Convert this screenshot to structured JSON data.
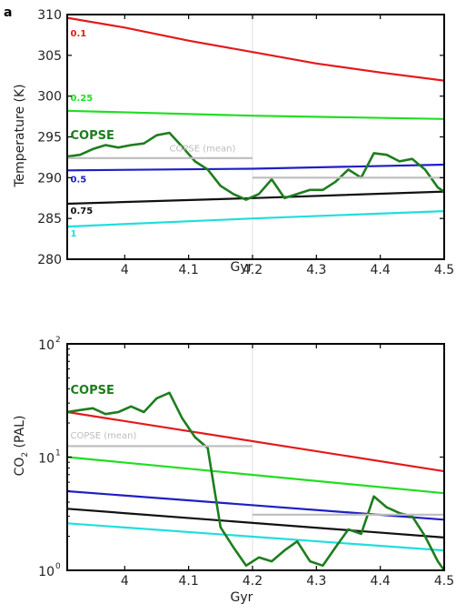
{
  "chart_data": [
    {
      "type": "line",
      "panel_label": "a",
      "xlabel": "Gyr",
      "ylabel": "Temperature (K)",
      "xlim": [
        3.91,
        4.5
      ],
      "ylim": [
        280,
        310
      ],
      "x_ticks": [
        4,
        4.1,
        4.2,
        4.3,
        4.4,
        4.5
      ],
      "x_tick_labels": [
        "4",
        "4.1",
        "4.2",
        "4.3",
        "4.4",
        "4.5"
      ],
      "y_ticks": [
        280,
        285,
        290,
        295,
        300,
        305,
        310
      ],
      "y_tick_labels": [
        "280",
        "285",
        "290",
        "295",
        "300",
        "305",
        "310"
      ],
      "y_scale": "linear",
      "vertical_marker": 4.2,
      "series": [
        {
          "name": "0.1",
          "color": "#e31a1c",
          "x": [
            3.91,
            4.0,
            4.1,
            4.2,
            4.3,
            4.4,
            4.5
          ],
          "values": [
            309.6,
            308.4,
            306.8,
            305.4,
            304.0,
            302.9,
            301.9
          ]
        },
        {
          "name": "0.25",
          "color": "#22dd22",
          "x": [
            3.91,
            4.2,
            4.5
          ],
          "values": [
            298.2,
            297.6,
            297.2
          ]
        },
        {
          "name": "0.5",
          "color": "#1f1fc4",
          "x": [
            3.91,
            4.2,
            4.5
          ],
          "values": [
            290.9,
            291.1,
            291.6
          ]
        },
        {
          "name": "0.75",
          "color": "#111111",
          "x": [
            3.91,
            4.2,
            4.5
          ],
          "values": [
            286.8,
            287.5,
            288.3
          ]
        },
        {
          "name": "1",
          "color": "#22dddd",
          "x": [
            3.91,
            4.2,
            4.5
          ],
          "values": [
            284.0,
            285.0,
            285.9
          ]
        },
        {
          "name": "COPSE",
          "color": "#1e7d1e",
          "x": [
            3.91,
            3.93,
            3.95,
            3.97,
            3.99,
            4.01,
            4.03,
            4.05,
            4.07,
            4.09,
            4.11,
            4.13,
            4.15,
            4.17,
            4.19,
            4.21,
            4.23,
            4.25,
            4.27,
            4.29,
            4.31,
            4.33,
            4.35,
            4.37,
            4.39,
            4.41,
            4.43,
            4.45,
            4.47,
            4.49,
            4.5
          ],
          "values": [
            292.6,
            292.8,
            293.5,
            294.0,
            293.7,
            294.0,
            294.2,
            295.2,
            295.5,
            293.8,
            292.0,
            291.0,
            289.0,
            288.0,
            287.3,
            288.0,
            289.8,
            287.5,
            288.0,
            288.5,
            288.5,
            289.5,
            291.0,
            290.0,
            293.0,
            292.8,
            292.0,
            292.3,
            291.0,
            288.8,
            288.3
          ]
        },
        {
          "name": "COPSE (mean)",
          "color": "#bdbdbd",
          "segments": [
            {
              "x": [
                3.91,
                4.2
              ],
              "values": [
                292.4,
                292.4
              ]
            },
            {
              "x": [
                4.2,
                4.5
              ],
              "values": [
                290.0,
                290.0
              ]
            }
          ]
        }
      ]
    },
    {
      "type": "line",
      "xlabel": "Gyr",
      "ylabel": "CO",
      "ylabel_subscript": "2",
      "ylabel_suffix": " (PAL)",
      "xlim": [
        3.91,
        4.5
      ],
      "ylim": [
        1,
        100
      ],
      "x_ticks": [
        4,
        4.1,
        4.2,
        4.3,
        4.4,
        4.5
      ],
      "x_tick_labels": [
        "4",
        "4.1",
        "4.2",
        "4.3",
        "4.4",
        "4.5"
      ],
      "y_ticks": [
        1,
        10,
        100
      ],
      "y_tick_bases": [
        "10",
        "10",
        "10"
      ],
      "y_tick_exponents": [
        "0",
        "1",
        "2"
      ],
      "y_scale": "log",
      "vertical_marker": 4.2,
      "series": [
        {
          "name": "0.1",
          "color": "#e31a1c",
          "x": [
            3.91,
            4.5
          ],
          "values": [
            25.0,
            7.5
          ]
        },
        {
          "name": "0.25",
          "color": "#22dd22",
          "x": [
            3.91,
            4.5
          ],
          "values": [
            10.0,
            4.8
          ]
        },
        {
          "name": "0.5",
          "color": "#1f1fc4",
          "x": [
            3.91,
            4.5
          ],
          "values": [
            5.0,
            2.8
          ]
        },
        {
          "name": "0.75",
          "color": "#111111",
          "x": [
            3.91,
            4.5
          ],
          "values": [
            3.5,
            1.95
          ]
        },
        {
          "name": "1",
          "color": "#22dddd",
          "x": [
            3.91,
            4.5
          ],
          "values": [
            2.6,
            1.5
          ]
        },
        {
          "name": "COPSE",
          "color": "#1e7d1e",
          "x": [
            3.91,
            3.93,
            3.95,
            3.97,
            3.99,
            4.01,
            4.03,
            4.05,
            4.07,
            4.09,
            4.11,
            4.13,
            4.15,
            4.17,
            4.19,
            4.21,
            4.23,
            4.25,
            4.27,
            4.29,
            4.31,
            4.33,
            4.35,
            4.37,
            4.39,
            4.41,
            4.43,
            4.45,
            4.47,
            4.49,
            4.5
          ],
          "values": [
            25.0,
            26.0,
            27.0,
            24.0,
            25.0,
            28.0,
            25.0,
            33.0,
            37.0,
            22.0,
            15.0,
            12.0,
            2.4,
            1.6,
            1.1,
            1.3,
            1.2,
            1.5,
            1.8,
            1.2,
            1.1,
            1.6,
            2.3,
            2.1,
            4.5,
            3.6,
            3.2,
            3.0,
            2.0,
            1.2,
            1.0
          ]
        },
        {
          "name": "COPSE (mean)",
          "color": "#bdbdbd",
          "segments": [
            {
              "x": [
                3.91,
                4.2
              ],
              "values": [
                12.5,
                12.5
              ]
            },
            {
              "x": [
                4.2,
                4.5
              ],
              "values": [
                3.1,
                3.1
              ]
            }
          ]
        }
      ]
    }
  ],
  "annotations": {
    "top": [
      {
        "text": "0.1",
        "color": "#e31a1c",
        "x": 3.915,
        "y": 307.3,
        "size": 10,
        "bold": true
      },
      {
        "text": "0.25",
        "color": "#22dd22",
        "x": 3.915,
        "y": 299.4,
        "size": 10,
        "bold": true
      },
      {
        "text": "COPSE",
        "color": "#1e7d1e",
        "x": 3.915,
        "y": 294.7,
        "size": 13,
        "bold": true
      },
      {
        "text": "COPSE (mean)",
        "color": "#bdbdbd",
        "x": 4.07,
        "y": 293.2,
        "size": 10,
        "bold": false
      },
      {
        "text": "0.5",
        "color": "#1f1fc4",
        "x": 3.915,
        "y": 289.4,
        "size": 10,
        "bold": true
      },
      {
        "text": "0.75",
        "color": "#111111",
        "x": 3.915,
        "y": 285.6,
        "size": 10,
        "bold": true
      },
      {
        "text": "1",
        "color": "#22dddd",
        "x": 3.915,
        "y": 282.8,
        "size": 10,
        "bold": true
      }
    ],
    "bottom": [
      {
        "text": "COPSE",
        "color": "#1e7d1e",
        "x": 3.915,
        "y": 36,
        "size": 13,
        "bold": true
      },
      {
        "text": "COPSE (mean)",
        "color": "#bdbdbd",
        "x": 3.915,
        "y": 14.6,
        "size": 10,
        "bold": false
      }
    ]
  }
}
